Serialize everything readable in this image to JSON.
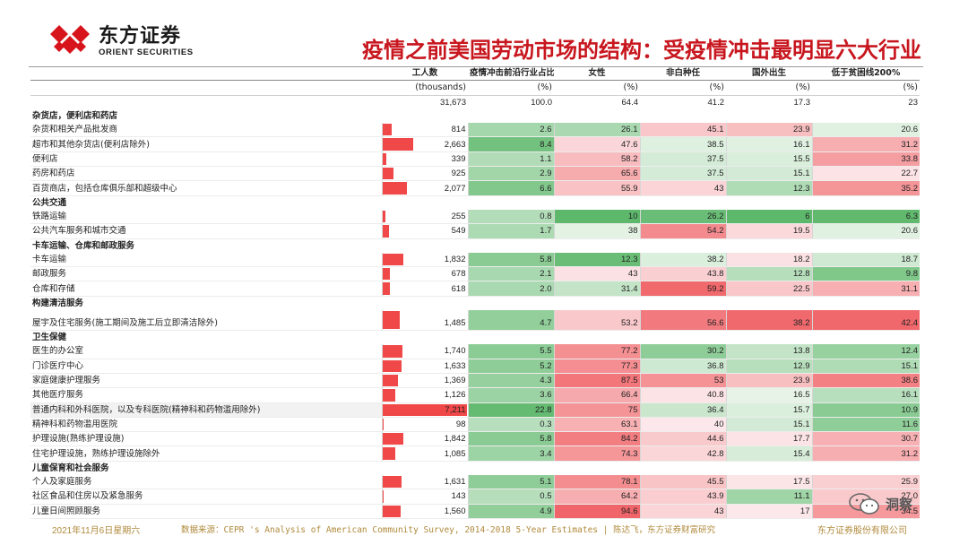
{
  "brand": {
    "cn": "东方证券",
    "en": "ORIENT SECURITIES",
    "colors": {
      "red": "#c8161e"
    }
  },
  "title": "疫情之前美国劳动市场的结构：受疫情冲击最明显六大行业",
  "table": {
    "headers": [
      "工人数",
      "疫情冲击前沿行业占比",
      "女性",
      "非白种任",
      "国外出生",
      "低于贫困线200%"
    ],
    "units": [
      "(thousands)",
      "(%)",
      "(%)",
      "(%)",
      "(%)",
      "(%)"
    ],
    "totals": [
      "31,673",
      "100.0",
      "64.4",
      "41.2",
      "17.3",
      "23"
    ],
    "rows": [
      {
        "type": "section",
        "label": "杂货店，便利店和药店"
      },
      {
        "type": "item",
        "label": "杂货和相关产品批发商",
        "values": [
          "814",
          "2.6",
          "26.1",
          "45.1",
          "23.9",
          "20.6"
        ],
        "share": 0.113
      },
      {
        "type": "item",
        "label": "超市和其他杂货店(便利店除外)",
        "values": [
          "2,663",
          "8.4",
          "47.6",
          "38.5",
          "16.1",
          "31.2"
        ],
        "share": 0.369
      },
      {
        "type": "item",
        "label": "便利店",
        "values": [
          "339",
          "1.1",
          "58.2",
          "37.5",
          "15.5",
          "33.8"
        ],
        "share": 0.047
      },
      {
        "type": "item",
        "label": "药房和药店",
        "values": [
          "925",
          "2.9",
          "65.6",
          "37.5",
          "15.1",
          "22.7"
        ],
        "share": 0.128
      },
      {
        "type": "item",
        "label": "百货商店，包括仓库俱乐部和超级中心",
        "values": [
          "2,077",
          "6.6",
          "55.9",
          "43",
          "12.3",
          "35.2"
        ],
        "share": 0.288
      },
      {
        "type": "section",
        "label": "公共交通"
      },
      {
        "type": "item",
        "label": "铁路运输",
        "values": [
          "255",
          "0.8",
          "10",
          "26.2",
          "6",
          "6.3"
        ],
        "share": 0.035
      },
      {
        "type": "item",
        "label": "公共汽车服务和城市交通",
        "values": [
          "549",
          "1.7",
          "38",
          "54.2",
          "19.5",
          "20.6"
        ],
        "share": 0.076
      },
      {
        "type": "section",
        "label": "卡车运输、仓库和邮政服务"
      },
      {
        "type": "item",
        "label": "卡车运输",
        "values": [
          "1,832",
          "5.8",
          "12.3",
          "38.2",
          "18.2",
          "18.7"
        ],
        "share": 0.254
      },
      {
        "type": "item",
        "label": "邮政服务",
        "values": [
          "678",
          "2.1",
          "43",
          "43.8",
          "12.8",
          "9.8"
        ],
        "share": 0.094
      },
      {
        "type": "item",
        "label": "仓库和存储",
        "values": [
          "618",
          "2.0",
          "31.4",
          "59.2",
          "22.5",
          "31.1"
        ],
        "share": 0.086
      },
      {
        "type": "section",
        "label": "构建清洁服务"
      },
      {
        "type": "item",
        "tall": true,
        "label": "屋宇及住宅服务(施工期间及施工后立即清洁除外)",
        "values": [
          "1,485",
          "4.7",
          "53.2",
          "56.6",
          "38.2",
          "42.4"
        ],
        "share": 0.206
      },
      {
        "type": "section",
        "label": "卫生保健"
      },
      {
        "type": "item",
        "label": "医生的办公室",
        "values": [
          "1,740",
          "5.5",
          "77.2",
          "30.2",
          "13.8",
          "12.4"
        ],
        "share": 0.241
      },
      {
        "type": "item",
        "label": "门诊医疗中心",
        "values": [
          "1,633",
          "5.2",
          "77.3",
          "36.8",
          "12.9",
          "15.1"
        ],
        "share": 0.226
      },
      {
        "type": "item",
        "label": "家庭健康护理服务",
        "values": [
          "1,369",
          "4.3",
          "87.5",
          "53",
          "23.9",
          "38.6"
        ],
        "share": 0.19
      },
      {
        "type": "item",
        "label": "其他医疗服务",
        "values": [
          "1,126",
          "3.6",
          "66.4",
          "40.8",
          "16.5",
          "16.1"
        ],
        "share": 0.156
      },
      {
        "type": "item",
        "hl": true,
        "label": "普通内科和外科医院，以及专科医院(精神科和药物滥用除外)",
        "values": [
          "7,211",
          "22.8",
          "75",
          "36.4",
          "15.7",
          "10.9"
        ],
        "share": 1.0
      },
      {
        "type": "item",
        "label": "精神科和药物滥用医院",
        "values": [
          "98",
          "0.3",
          "63.1",
          "40",
          "15.1",
          "11.6"
        ],
        "share": 0.014
      },
      {
        "type": "item",
        "label": "护理设施(熟练护理设施)",
        "values": [
          "1,842",
          "5.8",
          "84.2",
          "44.6",
          "17.7",
          "30.7"
        ],
        "share": 0.255
      },
      {
        "type": "item",
        "label": "住宅护理设施，熟练护理设施除外",
        "values": [
          "1,085",
          "3.4",
          "74.3",
          "42.8",
          "15.4",
          "31.2"
        ],
        "share": 0.15
      },
      {
        "type": "section",
        "label": "儿童保育和社会服务"
      },
      {
        "type": "item",
        "label": "个人及家庭服务",
        "values": [
          "1,631",
          "5.1",
          "78.1",
          "45.5",
          "17.5",
          "25.9"
        ],
        "share": 0.226
      },
      {
        "type": "item",
        "label": "社区食品和住房以及紧急服务",
        "values": [
          "143",
          "0.5",
          "64.2",
          "43.9",
          "11.1",
          "27.0"
        ],
        "share": 0.02
      },
      {
        "type": "item",
        "label": "儿童日间照顾服务",
        "values": [
          "1,560",
          "4.9",
          "94.6",
          "43",
          "17",
          "34.5"
        ],
        "share": 0.216
      }
    ]
  },
  "footer": {
    "date": "2021年11月6日星期六",
    "source": "数据来源：CEPR 's Analysis of American Community Survey, 2014-2018 5-Year Estimates | 陈达飞，东方证券财富研究",
    "company": "东方证券股份有限公司"
  },
  "watermark": "洞察"
}
